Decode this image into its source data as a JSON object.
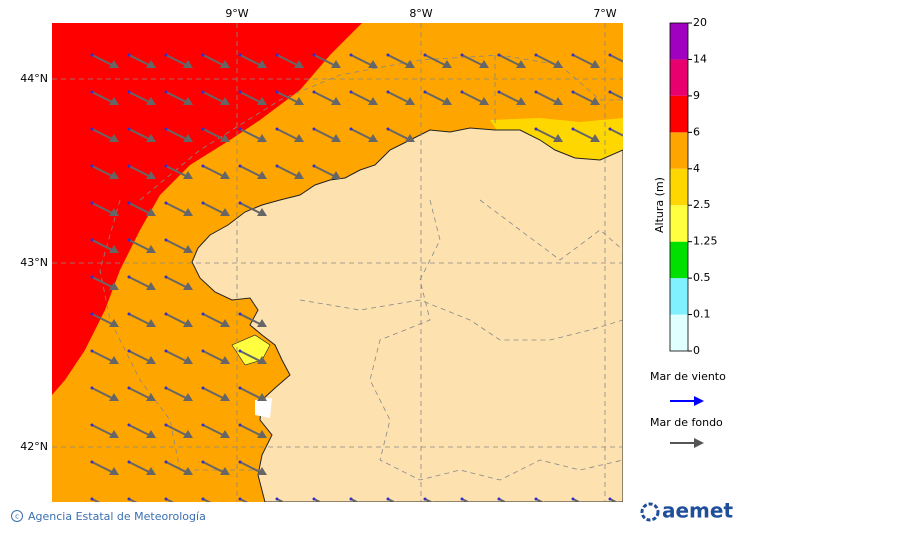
{
  "map": {
    "lon_labels": [
      "9°W",
      "8°W",
      "7°W"
    ],
    "lat_labels": [
      "44°N",
      "43°N",
      "42°N"
    ]
  },
  "colorbar": {
    "title": "Altura (m)",
    "levels": [
      "0",
      "0.1",
      "0.5",
      "1.25",
      "2.5",
      "4",
      "6",
      "9",
      "14",
      "20"
    ],
    "colors": [
      "#e0ffff",
      "#80f0ff",
      "#00e000",
      "#ffff40",
      "#ffd700",
      "#ffa500",
      "#ff0000",
      "#e8006e",
      "#a000c0"
    ]
  },
  "legend": {
    "wind_sea": "Mar de viento",
    "swell": "Mar de fondo"
  },
  "footer": {
    "agency": "Agencia Estatal de Meteorología",
    "logo": "aemet"
  }
}
